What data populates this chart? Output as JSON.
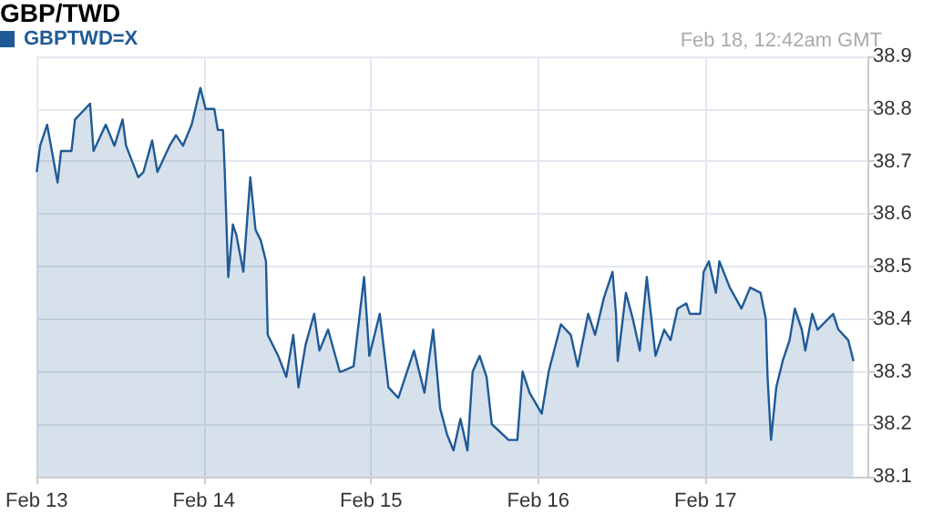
{
  "chart_data": {
    "type": "area",
    "title": "GBP/TWD",
    "annotations": [
      "Feb 18, 12:42am GMT"
    ],
    "x": [
      "--02-13T00:00",
      "--02-13T00:30",
      "--02-13T01:30",
      "--02-13T03:00",
      "--02-13T03:30",
      "--02-13T05:00",
      "--02-13T05:30",
      "--02-13T07:40",
      "--02-13T08:10",
      "--02-13T09:55",
      "--02-13T11:10",
      "--02-13T12:20",
      "--02-13T12:50",
      "--02-13T14:35",
      "--02-13T15:20",
      "--02-13T16:35",
      "--02-13T17:20",
      "--02-13T19:05",
      "--02-13T20:00",
      "--02-13T21:00",
      "--02-13T22:15",
      "--02-13T23:30",
      "--02-14T00:15",
      "--02-14T01:30",
      "--02-14T02:00",
      "--02-14T02:45",
      "--02-14T03:00",
      "--02-14T03:30",
      "--02-14T04:10",
      "--02-14T04:40",
      "--02-14T05:40",
      "--02-14T06:40",
      "--02-14T07:25",
      "--02-14T08:10",
      "--02-14T08:55",
      "--02-14T09:10",
      "--02-14T10:40",
      "--02-14T11:50",
      "--02-14T12:50",
      "--02-14T13:35",
      "--02-14T14:35",
      "--02-14T15:50",
      "--02-14T16:35",
      "--02-14T17:50",
      "--02-14T19:30",
      "--02-14T19:45",
      "--02-14T21:30",
      "--02-14T23:00",
      "--02-14T23:45",
      "--02-15T01:15",
      "--02-15T02:30",
      "--02-15T03:55",
      "--02-15T06:10",
      "--02-15T07:40",
      "--02-15T08:55",
      "--02-15T09:55",
      "--02-15T10:55",
      "--02-15T11:50",
      "--02-15T12:50",
      "--02-15T13:50",
      "--02-15T14:35",
      "--02-15T15:35",
      "--02-15T16:35",
      "--02-15T17:20",
      "--02-15T19:45",
      "--02-15T21:00",
      "--02-15T21:45",
      "--02-15T22:45",
      "--02-16T00:30",
      "--02-16T01:30",
      "--02-16T03:15",
      "--02-16T04:40",
      "--02-16T05:40",
      "--02-16T07:10",
      "--02-16T08:10",
      "--02-16T09:25",
      "--02-16T10:40",
      "--02-16T11:10",
      "--02-16T11:25",
      "--02-16T12:35",
      "--02-16T13:35",
      "--02-16T14:35",
      "--02-16T15:35",
      "--02-16T16:50",
      "--02-16T18:05",
      "--02-16T19:00",
      "--02-16T20:00",
      "--02-16T21:15",
      "--02-16T21:45",
      "--02-16T23:15",
      "--02-16T23:45",
      "--02-17T00:30",
      "--02-17T01:30",
      "--02-17T02:00",
      "--02-17T03:30",
      "--02-17T05:10",
      "--02-17T06:25",
      "--02-17T07:55",
      "--02-17T08:40",
      "--02-17T08:55",
      "--02-17T09:25",
      "--02-17T10:10",
      "--02-17T11:05",
      "--02-17T12:05",
      "--02-17T12:50",
      "--02-17T13:50",
      "--02-17T14:20",
      "--02-17T15:20",
      "--02-17T16:05",
      "--02-17T18:20",
      "--02-17T19:05",
      "--02-17T20:30",
      "--02-17T21:15"
    ],
    "series": [
      {
        "name": "GBPTWD=X",
        "color": "#1f5a96",
        "values": [
          38.68,
          38.73,
          38.77,
          38.66,
          38.72,
          38.72,
          38.78,
          38.81,
          38.72,
          38.77,
          38.73,
          38.78,
          38.73,
          38.67,
          38.68,
          38.74,
          38.68,
          38.73,
          38.75,
          38.73,
          38.77,
          38.84,
          38.8,
          38.8,
          38.76,
          38.76,
          38.68,
          38.48,
          38.58,
          38.56,
          38.49,
          38.67,
          38.57,
          38.55,
          38.51,
          38.37,
          38.33,
          38.29,
          38.37,
          38.27,
          38.35,
          38.41,
          38.34,
          38.38,
          38.3,
          38.3,
          38.31,
          38.48,
          38.33,
          38.41,
          38.27,
          38.25,
          38.34,
          38.26,
          38.38,
          38.23,
          38.18,
          38.15,
          38.21,
          38.15,
          38.3,
          38.33,
          38.29,
          38.2,
          38.17,
          38.17,
          38.3,
          38.26,
          38.22,
          38.3,
          38.39,
          38.37,
          38.31,
          38.41,
          38.37,
          38.44,
          38.49,
          38.41,
          38.32,
          38.45,
          38.4,
          38.34,
          38.48,
          38.33,
          38.38,
          38.36,
          38.42,
          38.43,
          38.41,
          38.41,
          38.49,
          38.51,
          38.45,
          38.51,
          38.46,
          38.42,
          38.46,
          38.45,
          38.4,
          38.29,
          38.17,
          38.27,
          38.32,
          38.36,
          38.42,
          38.38,
          38.34,
          38.41,
          38.38,
          38.41,
          38.38,
          38.36,
          38.32
        ]
      }
    ],
    "xlim": [
      "--02-13T00:00",
      "--02-17T23:15"
    ],
    "xticks": [
      {
        "value": "--02-13",
        "label": "Feb 13"
      },
      {
        "value": "--02-14",
        "label": "Feb 14"
      },
      {
        "value": "--02-15",
        "label": "Feb 15"
      },
      {
        "value": "--02-16",
        "label": "Feb 16"
      },
      {
        "value": "--02-17",
        "label": "Feb 17"
      }
    ],
    "ylim": [
      38.1,
      38.9
    ],
    "yticks": [
      38.1,
      38.2,
      38.3,
      38.4,
      38.5,
      38.6,
      38.7,
      38.8,
      38.9
    ],
    "grid": true,
    "legend": "top left",
    "marker": "none",
    "line_style": "solid"
  }
}
